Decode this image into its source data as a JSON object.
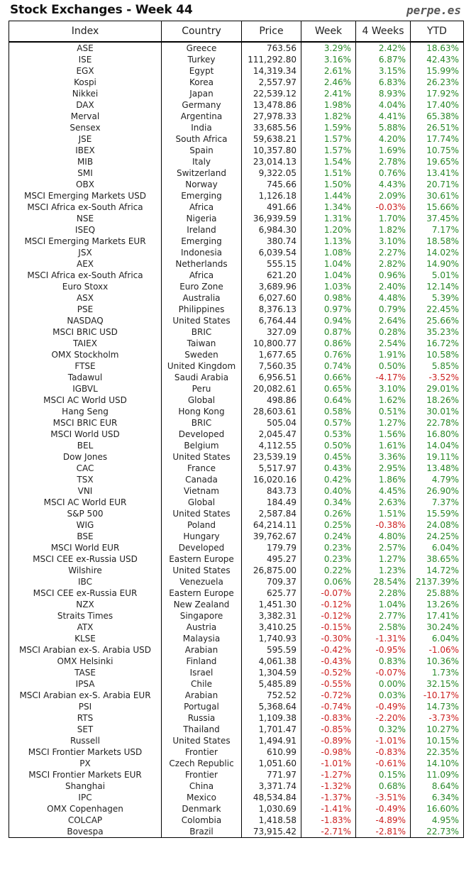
{
  "title": "Stock Exchanges - Week 44",
  "brand": "perpe.es",
  "colors": {
    "positive": "#2a8a2a",
    "negative": "#cc1f1f"
  },
  "columns": [
    "Index",
    "Country",
    "Price",
    "Week",
    "4 Weeks",
    "YTD"
  ],
  "rows": [
    [
      "ASE",
      "Greece",
      "763.56",
      "3.29%",
      "2.42%",
      "18.63%"
    ],
    [
      "ISE",
      "Turkey",
      "111,292.80",
      "3.16%",
      "6.87%",
      "42.43%"
    ],
    [
      "EGX",
      "Egypt",
      "14,319.34",
      "2.61%",
      "3.15%",
      "15.99%"
    ],
    [
      "Kospi",
      "Korea",
      "2,557.97",
      "2.46%",
      "6.83%",
      "26.23%"
    ],
    [
      "Nikkei",
      "Japan",
      "22,539.12",
      "2.41%",
      "8.93%",
      "17.92%"
    ],
    [
      "DAX",
      "Germany",
      "13,478.86",
      "1.98%",
      "4.04%",
      "17.40%"
    ],
    [
      "Merval",
      "Argentina",
      "27,978.33",
      "1.82%",
      "4.41%",
      "65.38%"
    ],
    [
      "Sensex",
      "India",
      "33,685.56",
      "1.59%",
      "5.88%",
      "26.51%"
    ],
    [
      "JSE",
      "South Africa",
      "59,638.21",
      "1.57%",
      "4.20%",
      "17.74%"
    ],
    [
      "IBEX",
      "Spain",
      "10,357.80",
      "1.57%",
      "1.69%",
      "10.75%"
    ],
    [
      "MIB",
      "Italy",
      "23,014.13",
      "1.54%",
      "2.78%",
      "19.65%"
    ],
    [
      "SMI",
      "Switzerland",
      "9,322.05",
      "1.51%",
      "0.76%",
      "13.41%"
    ],
    [
      "OBX",
      "Norway",
      "745.66",
      "1.50%",
      "4.43%",
      "20.71%"
    ],
    [
      "MSCI Emerging Markets USD",
      "Emerging",
      "1,126.18",
      "1.44%",
      "2.09%",
      "30.61%"
    ],
    [
      "MSCI Africa ex-South Africa",
      "Africa",
      "491.66",
      "1.34%",
      "-0.03%",
      "15.66%"
    ],
    [
      "NSE",
      "Nigeria",
      "36,939.59",
      "1.31%",
      "1.70%",
      "37.45%"
    ],
    [
      "ISEQ",
      "Ireland",
      "6,984.30",
      "1.20%",
      "1.82%",
      "7.17%"
    ],
    [
      "MSCI Emerging Markets EUR",
      "Emerging",
      "380.74",
      "1.13%",
      "3.10%",
      "18.58%"
    ],
    [
      "JSX",
      "Indonesia",
      "6,039.54",
      "1.08%",
      "2.27%",
      "14.02%"
    ],
    [
      "AEX",
      "Netherlands",
      "555.15",
      "1.04%",
      "2.82%",
      "14.90%"
    ],
    [
      "MSCI Africa ex-South Africa",
      "Africa",
      "621.20",
      "1.04%",
      "0.96%",
      "5.01%"
    ],
    [
      "Euro Stoxx",
      "Euro Zone",
      "3,689.96",
      "1.03%",
      "2.40%",
      "12.14%"
    ],
    [
      "ASX",
      "Australia",
      "6,027.60",
      "0.98%",
      "4.48%",
      "5.39%"
    ],
    [
      "PSE",
      "Philippines",
      "8,376.13",
      "0.97%",
      "0.79%",
      "22.45%"
    ],
    [
      "NASDAQ",
      "United States",
      "6,764.44",
      "0.94%",
      "2.64%",
      "25.66%"
    ],
    [
      "MSCI BRIC USD",
      "BRIC",
      "327.09",
      "0.87%",
      "0.28%",
      "35.23%"
    ],
    [
      "TAIEX",
      "Taiwan",
      "10,800.77",
      "0.86%",
      "2.54%",
      "16.72%"
    ],
    [
      "OMX Stockholm",
      "Sweden",
      "1,677.65",
      "0.76%",
      "1.91%",
      "10.58%"
    ],
    [
      "FTSE",
      "United Kingdom",
      "7,560.35",
      "0.74%",
      "0.50%",
      "5.85%"
    ],
    [
      "Tadawul",
      "Saudi Arabia",
      "6,956.51",
      "0.66%",
      "-4.17%",
      "-3.52%"
    ],
    [
      "IGBVL",
      "Peru",
      "20,082.61",
      "0.65%",
      "3.10%",
      "29.01%"
    ],
    [
      "MSCI AC World USD",
      "Global",
      "498.86",
      "0.64%",
      "1.62%",
      "18.26%"
    ],
    [
      "Hang Seng",
      "Hong Kong",
      "28,603.61",
      "0.58%",
      "0.51%",
      "30.01%"
    ],
    [
      "MSCI BRIC EUR",
      "BRIC",
      "505.04",
      "0.57%",
      "1.27%",
      "22.78%"
    ],
    [
      "MSCI World USD",
      "Developed",
      "2,045.47",
      "0.53%",
      "1.56%",
      "16.80%"
    ],
    [
      "BEL",
      "Belgium",
      "4,112.55",
      "0.50%",
      "1.61%",
      "14.04%"
    ],
    [
      "Dow Jones",
      "United States",
      "23,539.19",
      "0.45%",
      "3.36%",
      "19.11%"
    ],
    [
      "CAC",
      "France",
      "5,517.97",
      "0.43%",
      "2.95%",
      "13.48%"
    ],
    [
      "TSX",
      "Canada",
      "16,020.16",
      "0.42%",
      "1.86%",
      "4.79%"
    ],
    [
      "VNI",
      "Vietnam",
      "843.73",
      "0.40%",
      "4.45%",
      "26.90%"
    ],
    [
      "MSCI AC World EUR",
      "Global",
      "184.49",
      "0.34%",
      "2.63%",
      "7.37%"
    ],
    [
      "S&P 500",
      "United States",
      "2,587.84",
      "0.26%",
      "1.51%",
      "15.59%"
    ],
    [
      "WIG",
      "Poland",
      "64,214.11",
      "0.25%",
      "-0.38%",
      "24.08%"
    ],
    [
      "BSE",
      "Hungary",
      "39,762.67",
      "0.24%",
      "4.80%",
      "24.25%"
    ],
    [
      "MSCI World EUR",
      "Developed",
      "179.79",
      "0.23%",
      "2.57%",
      "6.04%"
    ],
    [
      "MSCI CEE ex-Russia USD",
      "Eastern Europe",
      "495.27",
      "0.23%",
      "1.27%",
      "38.65%"
    ],
    [
      "Wilshire",
      "United States",
      "26,875.00",
      "0.22%",
      "1.23%",
      "14.72%"
    ],
    [
      "IBC",
      "Venezuela",
      "709.37",
      "0.06%",
      "28.54%",
      "2137.39%"
    ],
    [
      "MSCI CEE ex-Russia EUR",
      "Eastern Europe",
      "625.77",
      "-0.07%",
      "2.28%",
      "25.88%"
    ],
    [
      "NZX",
      "New Zealand",
      "1,451.30",
      "-0.12%",
      "1.04%",
      "13.26%"
    ],
    [
      "Straits Times",
      "Singapore",
      "3,382.31",
      "-0.12%",
      "2.77%",
      "17.41%"
    ],
    [
      "ATX",
      "Austria",
      "3,410.25",
      "-0.15%",
      "2.58%",
      "30.24%"
    ],
    [
      "KLSE",
      "Malaysia",
      "1,740.93",
      "-0.30%",
      "-1.31%",
      "6.04%"
    ],
    [
      "MSCI Arabian ex-S. Arabia USD",
      "Arabian",
      "595.59",
      "-0.42%",
      "-0.95%",
      "-1.06%"
    ],
    [
      "OMX Helsinki",
      "Finland",
      "4,061.38",
      "-0.43%",
      "0.83%",
      "10.36%"
    ],
    [
      "TASE",
      "Israel",
      "1,304.59",
      "-0.52%",
      "-0.07%",
      "1.73%"
    ],
    [
      "IPSA",
      "Chile",
      "5,485.89",
      "-0.55%",
      "0.00%",
      "32.15%"
    ],
    [
      "MSCI Arabian ex-S. Arabia EUR",
      "Arabian",
      "752.52",
      "-0.72%",
      "0.03%",
      "-10.17%"
    ],
    [
      "PSI",
      "Portugal",
      "5,368.64",
      "-0.74%",
      "-0.49%",
      "14.73%"
    ],
    [
      "RTS",
      "Russia",
      "1,109.38",
      "-0.83%",
      "-2.20%",
      "-3.73%"
    ],
    [
      "SET",
      "Thailand",
      "1,701.47",
      "-0.85%",
      "0.32%",
      "10.27%"
    ],
    [
      "Russell",
      "United States",
      "1,494.91",
      "-0.89%",
      "-1.01%",
      "10.15%"
    ],
    [
      "MSCI Frontier Markets USD",
      "Frontier",
      "610.99",
      "-0.98%",
      "-0.83%",
      "22.35%"
    ],
    [
      "PX",
      "Czech Republic",
      "1,051.60",
      "-1.01%",
      "-0.61%",
      "14.10%"
    ],
    [
      "MSCI Frontier Markets EUR",
      "Frontier",
      "771.97",
      "-1.27%",
      "0.15%",
      "11.09%"
    ],
    [
      "Shanghai",
      "China",
      "3,371.74",
      "-1.32%",
      "0.68%",
      "8.64%"
    ],
    [
      "IPC",
      "Mexico",
      "48,534.84",
      "-1.37%",
      "-3.51%",
      "6.34%"
    ],
    [
      "OMX Copenhagen",
      "Denmark",
      "1,030.69",
      "-1.41%",
      "-0.49%",
      "16.60%"
    ],
    [
      "COLCAP",
      "Colombia",
      "1,418.58",
      "-1.83%",
      "-4.89%",
      "4.95%"
    ],
    [
      "Bovespa",
      "Brazil",
      "73,915.42",
      "-2.71%",
      "-2.81%",
      "22.73%"
    ]
  ]
}
